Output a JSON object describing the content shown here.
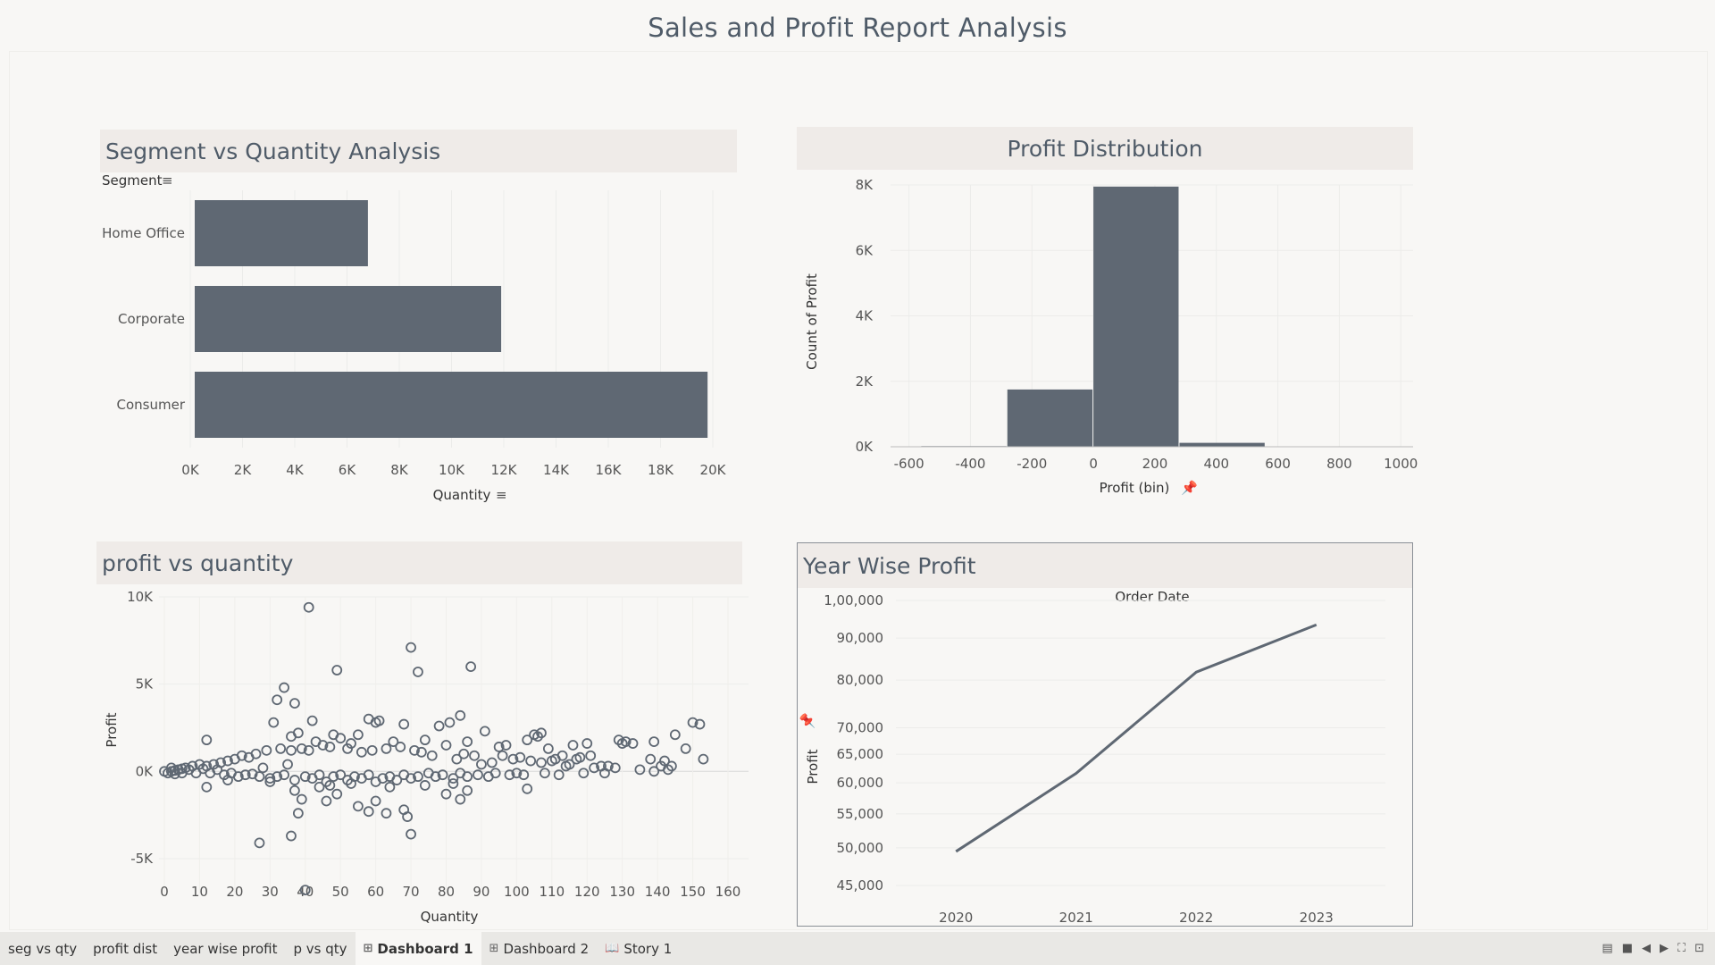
{
  "dashboard_title": "Sales and Profit Report Analysis",
  "panels": {
    "seg": {
      "title": "Segment vs Quantity Analysis"
    },
    "dist": {
      "title": "Profit Distribution"
    },
    "pvq": {
      "title": "profit vs quantity"
    },
    "year": {
      "title": "Year Wise Profit"
    }
  },
  "colors": {
    "mark": "#5f6873",
    "header_bg": "#efebe8",
    "title": "#4f5b68"
  },
  "chart_data": [
    {
      "id": "segment_vs_quantity",
      "type": "bar",
      "orientation": "horizontal",
      "title": "Segment vs Quantity Analysis",
      "ylabel": "Segment",
      "xlabel": "Quantity",
      "categories": [
        "Home Office",
        "Corporate",
        "Consumer"
      ],
      "values": [
        6800,
        11900,
        19800
      ],
      "xlim": [
        0,
        20000
      ],
      "xticks": [
        "0K",
        "2K",
        "4K",
        "6K",
        "8K",
        "10K",
        "12K",
        "14K",
        "16K",
        "18K",
        "20K"
      ],
      "grid": true
    },
    {
      "id": "profit_distribution",
      "type": "bar",
      "subtype": "histogram",
      "title": "Profit Distribution",
      "xlabel": "Profit (bin)",
      "ylabel": "Count of Profit",
      "bins": [
        {
          "x0": -560,
          "x1": -280,
          "count": 20
        },
        {
          "x0": -280,
          "x1": 0,
          "count": 1750
        },
        {
          "x0": 0,
          "x1": 280,
          "count": 7950
        },
        {
          "x0": 280,
          "x1": 560,
          "count": 120
        },
        {
          "x0": 560,
          "x1": 840,
          "count": 10
        }
      ],
      "xlim": [
        -660,
        1040
      ],
      "ylim": [
        0,
        8000
      ],
      "xticks": [
        "-600",
        "-400",
        "-200",
        "0",
        "200",
        "400",
        "600",
        "800",
        "1000"
      ],
      "yticks": [
        "0K",
        "2K",
        "4K",
        "6K",
        "8K"
      ],
      "grid": true
    },
    {
      "id": "profit_vs_quantity",
      "type": "scatter",
      "title": "profit vs quantity",
      "xlabel": "Quantity",
      "ylabel": "Profit",
      "xlim": [
        0,
        160
      ],
      "ylim": [
        -7000,
        10000
      ],
      "xticks": [
        "0",
        "10",
        "20",
        "30",
        "40",
        "50",
        "60",
        "70",
        "80",
        "90",
        "100",
        "110",
        "120",
        "130",
        "140",
        "150",
        "160"
      ],
      "yticks": [
        "10K",
        "5K",
        "0K",
        "-5K"
      ],
      "points": [
        [
          41,
          9400
        ],
        [
          70,
          7100
        ],
        [
          87,
          6000
        ],
        [
          49,
          5800
        ],
        [
          72,
          5700
        ],
        [
          34,
          4800
        ],
        [
          32,
          4100
        ],
        [
          37,
          3900
        ],
        [
          58,
          3000
        ],
        [
          42,
          2900
        ],
        [
          31,
          2800
        ],
        [
          84,
          3200
        ],
        [
          61,
          2900
        ],
        [
          60,
          2800
        ],
        [
          91,
          2300
        ],
        [
          78,
          2600
        ],
        [
          81,
          2800
        ],
        [
          150,
          2800
        ],
        [
          68,
          2700
        ],
        [
          55,
          2100
        ],
        [
          38,
          2200
        ],
        [
          36,
          2000
        ],
        [
          12,
          1800
        ],
        [
          48,
          2100
        ],
        [
          50,
          1900
        ],
        [
          53,
          1600
        ],
        [
          65,
          1700
        ],
        [
          74,
          1800
        ],
        [
          80,
          1500
        ],
        [
          86,
          1700
        ],
        [
          95,
          1400
        ],
        [
          97,
          1500
        ],
        [
          103,
          1800
        ],
        [
          105,
          2100
        ],
        [
          107,
          2200
        ],
        [
          106,
          2000
        ],
        [
          109,
          1300
        ],
        [
          116,
          1500
        ],
        [
          120,
          1600
        ],
        [
          131,
          1700
        ],
        [
          133,
          1600
        ],
        [
          139,
          1700
        ],
        [
          145,
          2100
        ],
        [
          148,
          1300
        ],
        [
          129,
          1800
        ],
        [
          121,
          900
        ],
        [
          124,
          300
        ],
        [
          117,
          700
        ],
        [
          113,
          900
        ],
        [
          111,
          700
        ],
        [
          107,
          500
        ],
        [
          104,
          600
        ],
        [
          101,
          800
        ],
        [
          99,
          700
        ],
        [
          96,
          900
        ],
        [
          93,
          500
        ],
        [
          90,
          400
        ],
        [
          88,
          900
        ],
        [
          85,
          1000
        ],
        [
          83,
          700
        ],
        [
          76,
          900
        ],
        [
          73,
          1100
        ],
        [
          71,
          1200
        ],
        [
          67,
          1400
        ],
        [
          63,
          1300
        ],
        [
          59,
          1200
        ],
        [
          56,
          1100
        ],
        [
          52,
          1300
        ],
        [
          47,
          1400
        ],
        [
          45,
          1500
        ],
        [
          43,
          1700
        ],
        [
          41,
          1200
        ],
        [
          39,
          1300
        ],
        [
          36,
          1200
        ],
        [
          33,
          1300
        ],
        [
          29,
          1200
        ],
        [
          26,
          1000
        ],
        [
          24,
          800
        ],
        [
          22,
          900
        ],
        [
          20,
          700
        ],
        [
          18,
          600
        ],
        [
          16,
          500
        ],
        [
          14,
          400
        ],
        [
          12,
          300
        ],
        [
          10,
          400
        ],
        [
          8,
          300
        ],
        [
          6,
          200
        ],
        [
          5,
          150
        ],
        [
          4,
          100
        ],
        [
          3,
          50
        ],
        [
          2,
          0
        ],
        [
          1,
          -100
        ],
        [
          0,
          0
        ],
        [
          2,
          200
        ],
        [
          3,
          -150
        ],
        [
          5,
          -100
        ],
        [
          7,
          100
        ],
        [
          9,
          -100
        ],
        [
          11,
          150
        ],
        [
          13,
          -100
        ],
        [
          15,
          100
        ],
        [
          17,
          -200
        ],
        [
          19,
          -100
        ],
        [
          21,
          -300
        ],
        [
          23,
          -200
        ],
        [
          25,
          -150
        ],
        [
          27,
          -300
        ],
        [
          28,
          200
        ],
        [
          30,
          -400
        ],
        [
          32,
          -300
        ],
        [
          34,
          -200
        ],
        [
          35,
          400
        ],
        [
          37,
          -500
        ],
        [
          40,
          -300
        ],
        [
          42,
          -400
        ],
        [
          44,
          -200
        ],
        [
          46,
          -600
        ],
        [
          48,
          -300
        ],
        [
          50,
          -200
        ],
        [
          52,
          -500
        ],
        [
          54,
          -300
        ],
        [
          56,
          -400
        ],
        [
          58,
          -200
        ],
        [
          60,
          -600
        ],
        [
          62,
          -400
        ],
        [
          64,
          -300
        ],
        [
          66,
          -500
        ],
        [
          68,
          -200
        ],
        [
          70,
          -400
        ],
        [
          72,
          -300
        ],
        [
          75,
          -100
        ],
        [
          77,
          -300
        ],
        [
          79,
          -200
        ],
        [
          82,
          -400
        ],
        [
          84,
          -100
        ],
        [
          86,
          -300
        ],
        [
          89,
          -200
        ],
        [
          92,
          -300
        ],
        [
          94,
          -100
        ],
        [
          98,
          -200
        ],
        [
          100,
          -100
        ],
        [
          102,
          -200
        ],
        [
          108,
          -100
        ],
        [
          112,
          -200
        ],
        [
          119,
          -100
        ],
        [
          125,
          -100
        ],
        [
          135,
          100
        ],
        [
          139,
          0
        ],
        [
          141,
          300
        ],
        [
          143,
          100
        ],
        [
          12,
          -900
        ],
        [
          27,
          -4100
        ],
        [
          36,
          -3700
        ],
        [
          40,
          -6800
        ],
        [
          38,
          -2400
        ],
        [
          39,
          -1600
        ],
        [
          37,
          -1100
        ],
        [
          46,
          -1700
        ],
        [
          49,
          -1300
        ],
        [
          55,
          -2000
        ],
        [
          58,
          -2300
        ],
        [
          63,
          -2400
        ],
        [
          60,
          -1700
        ],
        [
          68,
          -2200
        ],
        [
          69,
          -2600
        ],
        [
          70,
          -3600
        ],
        [
          80,
          -1300
        ],
        [
          84,
          -1600
        ],
        [
          86,
          -1100
        ],
        [
          103,
          -1000
        ],
        [
          82,
          -700
        ],
        [
          74,
          -800
        ],
        [
          64,
          -900
        ],
        [
          53,
          -700
        ],
        [
          47,
          -800
        ],
        [
          44,
          -900
        ],
        [
          30,
          -600
        ],
        [
          18,
          -500
        ],
        [
          130,
          1600
        ],
        [
          138,
          700
        ],
        [
          153,
          700
        ],
        [
          152,
          2700
        ],
        [
          142,
          600
        ],
        [
          144,
          300
        ],
        [
          128,
          200
        ],
        [
          126,
          300
        ],
        [
          115,
          400
        ],
        [
          122,
          200
        ],
        [
          118,
          800
        ],
        [
          110,
          600
        ],
        [
          114,
          300
        ]
      ],
      "grid": true
    },
    {
      "id": "year_wise_profit",
      "type": "line",
      "title": "Year Wise Profit",
      "xlabel": "Order Date",
      "ylabel": "Profit",
      "x": [
        "2020",
        "2021",
        "2022",
        "2023"
      ],
      "values": [
        49500,
        61600,
        81800,
        93400
      ],
      "yscale": "log",
      "ylim": [
        44000,
        101000
      ],
      "yticks": [
        "1,00,000",
        "90,000",
        "80,000",
        "70,000",
        "65,000",
        "60,000",
        "55,000",
        "50,000",
        "45,000"
      ],
      "grid": true
    }
  ],
  "tabs": [
    {
      "label": "seg vs qty",
      "icon": ""
    },
    {
      "label": "profit dist",
      "icon": ""
    },
    {
      "label": "year wise profit",
      "icon": ""
    },
    {
      "label": "p vs qty",
      "icon": ""
    },
    {
      "label": "Dashboard 1",
      "icon": "⊞",
      "active": true
    },
    {
      "label": "Dashboard 2",
      "icon": "⊞"
    },
    {
      "label": "Story 1",
      "icon": "📖"
    }
  ]
}
